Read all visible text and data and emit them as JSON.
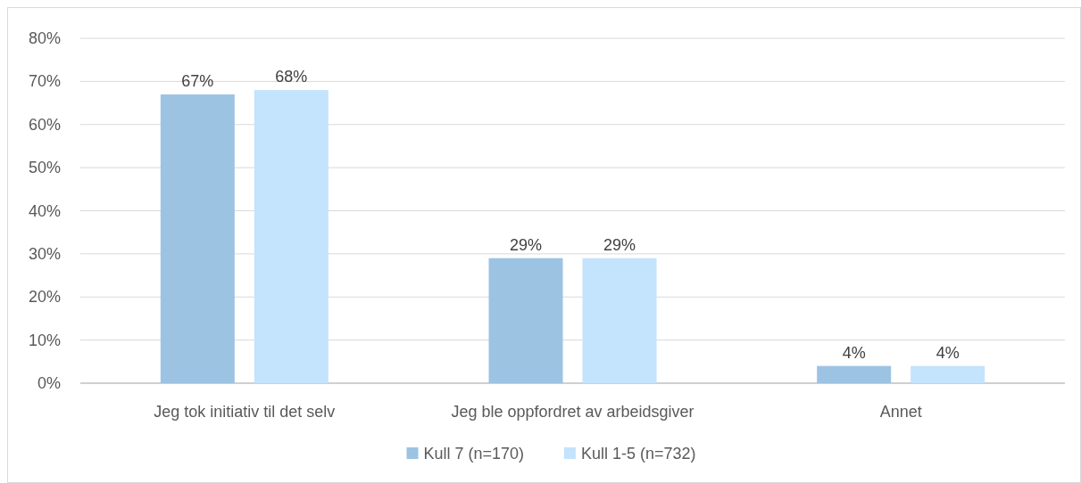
{
  "chart_data": {
    "type": "bar",
    "categories": [
      "Jeg tok initiativ til det selv",
      "Jeg ble oppfordret av arbeidsgiver",
      "Annet"
    ],
    "series": [
      {
        "name": "Kull 7 (n=170)",
        "color": "#9dc3e3",
        "values": [
          67,
          29,
          4
        ],
        "value_labels": [
          "67%",
          "29%",
          "4%"
        ]
      },
      {
        "name": "Kull 1-5 (n=732)",
        "color": "#c4e3fc",
        "values": [
          68,
          29,
          4
        ],
        "value_labels": [
          "68%",
          "29%",
          "4%"
        ]
      }
    ],
    "ylim": [
      0,
      80
    ],
    "yticks": [
      {
        "value": 0,
        "label": "0%"
      },
      {
        "value": 10,
        "label": "10%"
      },
      {
        "value": 20,
        "label": "20%"
      },
      {
        "value": 30,
        "label": "30%"
      },
      {
        "value": 40,
        "label": "40%"
      },
      {
        "value": 50,
        "label": "50%"
      },
      {
        "value": 60,
        "label": "60%"
      },
      {
        "value": 70,
        "label": "70%"
      },
      {
        "value": 80,
        "label": "80%"
      }
    ],
    "grid": "y",
    "legend": "bottom"
  }
}
